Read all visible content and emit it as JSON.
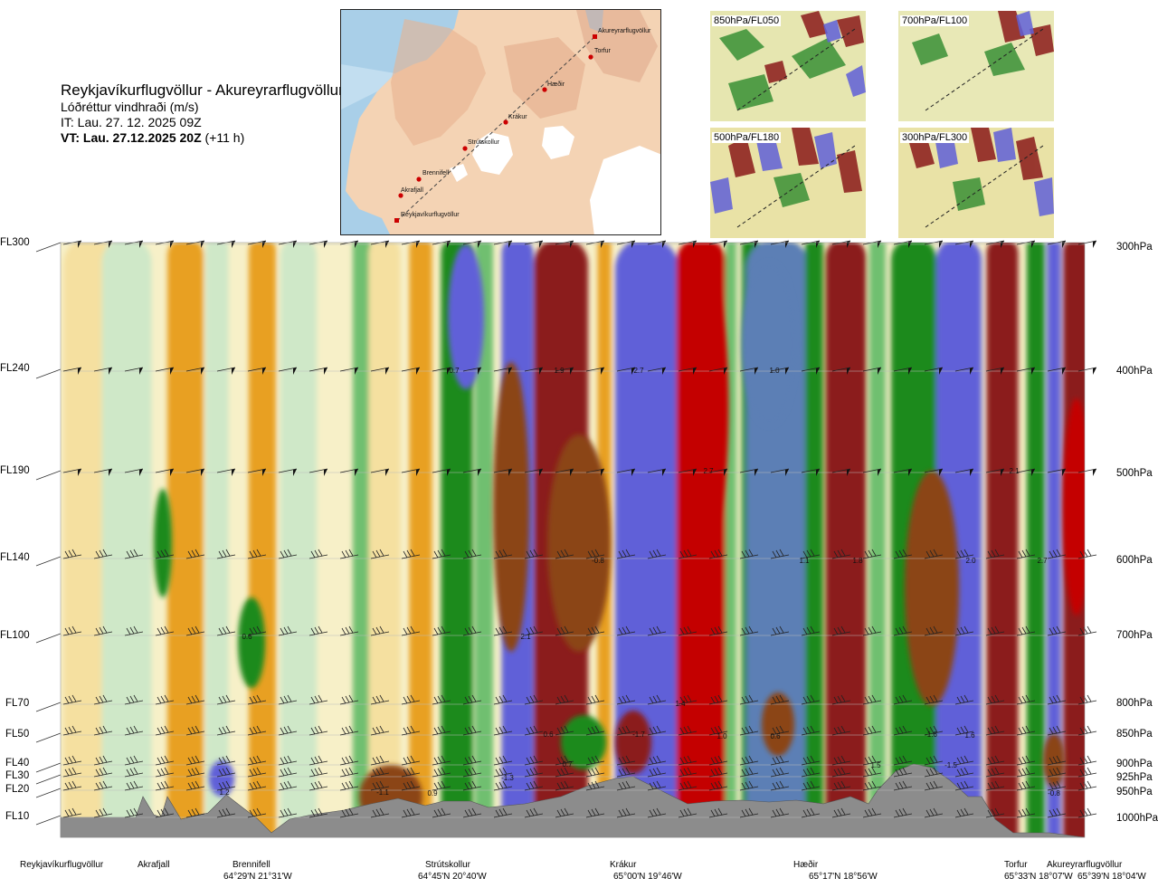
{
  "header": {
    "title": "Reykjavíkurflugvöllur - Akureyrarflugvöllur",
    "subtitle": "Lóðréttur vindhraði (m/s)",
    "issue_time": "IT: Lau. 27. 12. 2025 09Z",
    "valid_prefix": "VT: Lau. 27.12.2025 20Z",
    "valid_suffix": "(+11 h)"
  },
  "map": {
    "points": [
      "Akureyrarflugvöllur",
      "Torfur",
      "Hæðir",
      "Krákur",
      "Strútskollur",
      "Brennifell",
      "Akrafjall",
      "Reykjavíkurflugvöllur"
    ]
  },
  "thumbnails": [
    "850hPa/FL050",
    "700hPa/FL100",
    "500hPa/FL180",
    "300hPa/FL300"
  ],
  "colors": {
    "strong_down": "#8b1a1a",
    "down": "#c40000",
    "mod_down": "#8b4513",
    "light_down": "#e8a020",
    "weak_down": "#f5e0a0",
    "neutral": "#f7f0c8",
    "weak_up": "#cfe8c8",
    "light_up": "#6fbf6f",
    "up": "#1a8a1a",
    "strong_up": "#6060d8",
    "very_up": "#5b7fb5",
    "terrain": "#8c8c8c"
  },
  "chart_data": {
    "type": "heatmap",
    "title": "Lóðréttur vindhraði (m/s)",
    "left_axis_levels": [
      "FL300",
      "FL240",
      "FL190",
      "FL140",
      "FL100",
      "FL70",
      "FL50",
      "FL40",
      "FL30",
      "FL20",
      "FL10"
    ],
    "right_axis_levels": [
      "300hPa",
      "400hPa",
      "500hPa",
      "600hPa",
      "700hPa",
      "800hPa",
      "850hPa",
      "900hPa",
      "925hPa",
      "950hPa",
      "1000hPa"
    ],
    "locations": [
      "Reykjavíkurflugvöllur",
      "Akrafjall",
      "Brennifell",
      "Strútskollur",
      "Krákur",
      "Hæðir",
      "Torfur",
      "Akureyrarflugvöllur"
    ],
    "coordinates": [
      "64°29'N 21°31'W",
      "64°45'N 20°40'W",
      "65°00'N 19°46'W",
      "65°17'N 18°56'W",
      "65°33'N 18°07'W",
      "65°39'N 18°04'W"
    ],
    "value_labels": [
      "0.7",
      "1.9",
      "2.7",
      "1.0",
      "2.7",
      "2.1",
      "1.1",
      "1.8",
      "2.0",
      "2.7",
      "-0.8",
      "0.6",
      "2.1",
      "1.4",
      "0.6",
      "-1.7",
      "1.0",
      "0.6",
      "-1.6",
      "1.6",
      "0.7",
      "1.5",
      "-1.5",
      "1.2",
      "-1.1",
      "0.9",
      "-1.3",
      "-0.8"
    ]
  }
}
